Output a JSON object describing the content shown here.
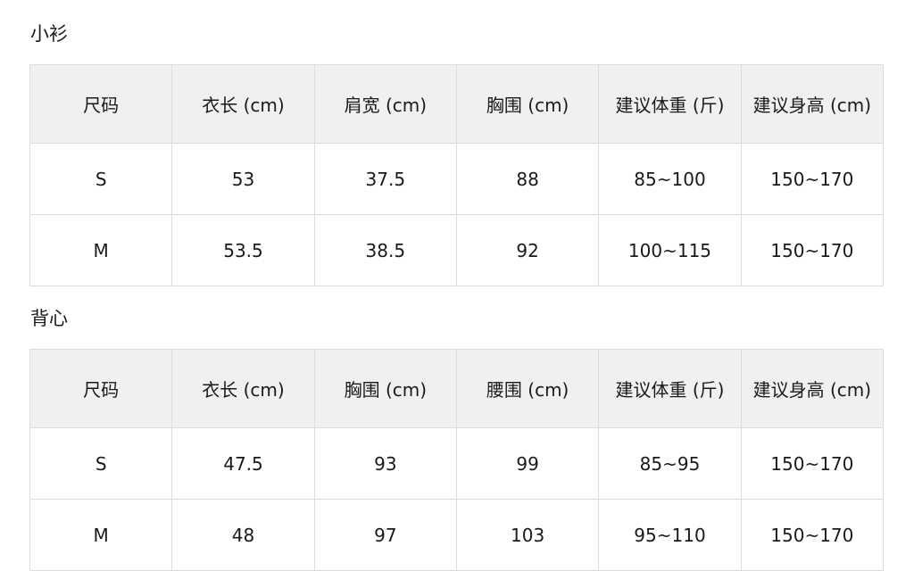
{
  "tables": [
    {
      "title": "小衫",
      "headers": [
        "尺码",
        "衣长 (cm)",
        "肩宽 (cm)",
        "胸围 (cm)",
        "建议体重 (斤)",
        "建议身高 (cm)"
      ],
      "rows": [
        [
          "S",
          "53",
          "37.5",
          "88",
          "85~100",
          "150~170"
        ],
        [
          "M",
          "53.5",
          "38.5",
          "92",
          "100~115",
          "150~170"
        ]
      ]
    },
    {
      "title": "背心",
      "headers": [
        "尺码",
        "衣长 (cm)",
        "胸围 (cm)",
        "腰围 (cm)",
        "建议体重 (斤)",
        "建议身高 (cm)"
      ],
      "rows": [
        [
          "S",
          "47.5",
          "93",
          "99",
          "85~95",
          "150~170"
        ],
        [
          "M",
          "48",
          "97",
          "103",
          "95~110",
          "150~170"
        ]
      ]
    }
  ]
}
